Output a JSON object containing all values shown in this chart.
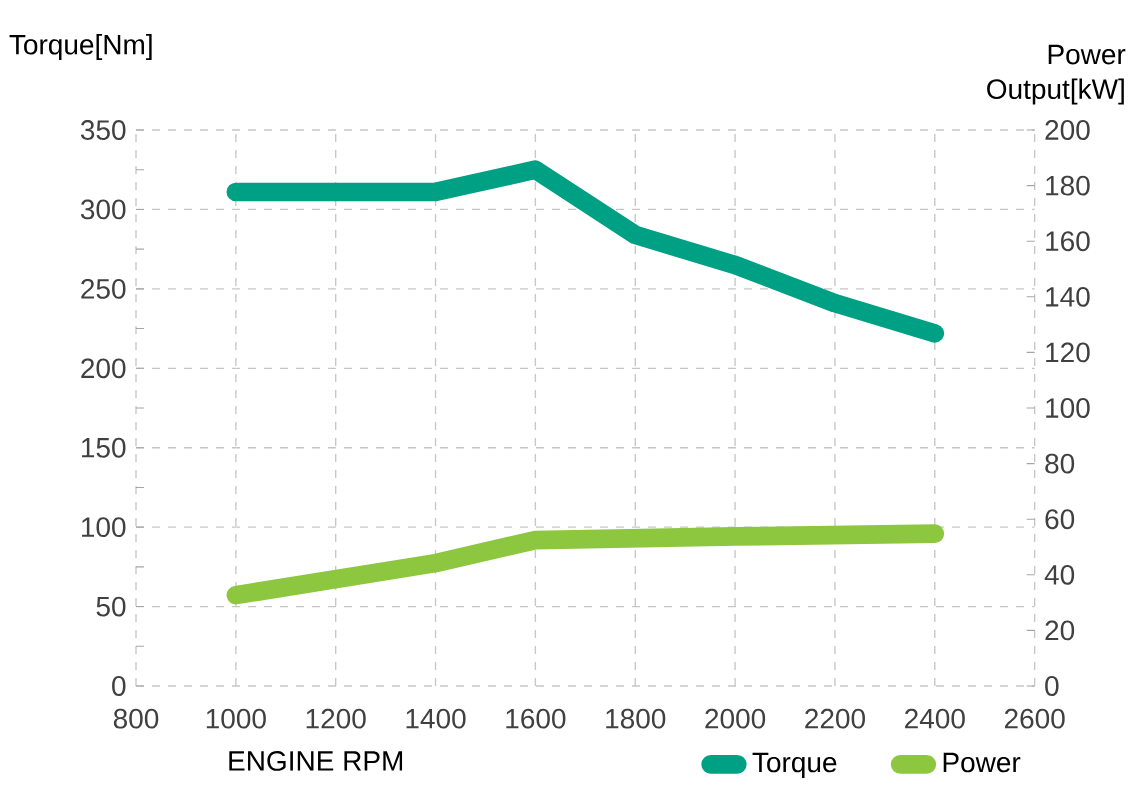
{
  "chart_data": {
    "type": "line",
    "xlabel": "ENGINE RPM",
    "ylabel": "Torque[Nm]",
    "y2label": "Power Output[kW]",
    "x": [
      1000,
      1400,
      1600,
      1800,
      2000,
      2200,
      2400
    ],
    "series": [
      {
        "name": "Torque",
        "color": "#00a085",
        "values": [
          311,
          311,
          325,
          284,
          265,
          241,
          222
        ]
      },
      {
        "name": "Power",
        "color": "#8dc63f",
        "axis": "y2",
        "x": [
          1000,
          1400,
          1600,
          2000,
          2400
        ],
        "values": [
          32.7,
          44.2,
          52.5,
          53.8,
          54.8
        ]
      }
    ],
    "xlim": [
      800,
      2600
    ],
    "xticks": [
      800,
      1000,
      1200,
      1400,
      1600,
      1800,
      2000,
      2200,
      2400,
      2600
    ],
    "ylim": [
      0,
      350
    ],
    "yticks": [
      0,
      {
        "value": 25,
        "label": null
      },
      50,
      {
        "value": 75,
        "label": null
      },
      100,
      {
        "value": 125,
        "label": null
      },
      150,
      {
        "value": 175,
        "label": null
      },
      200,
      {
        "value": 225,
        "label": null
      },
      250,
      {
        "value": 275,
        "label": null
      },
      300,
      {
        "value": 325,
        "label": null
      },
      350
    ],
    "y2lim": [
      0,
      200
    ],
    "y2ticks": [
      0,
      20,
      40,
      60,
      80,
      100,
      120,
      140,
      160,
      180,
      200
    ],
    "grid": true,
    "legend": "bottom",
    "marker": "none",
    "line_style": "solid"
  }
}
